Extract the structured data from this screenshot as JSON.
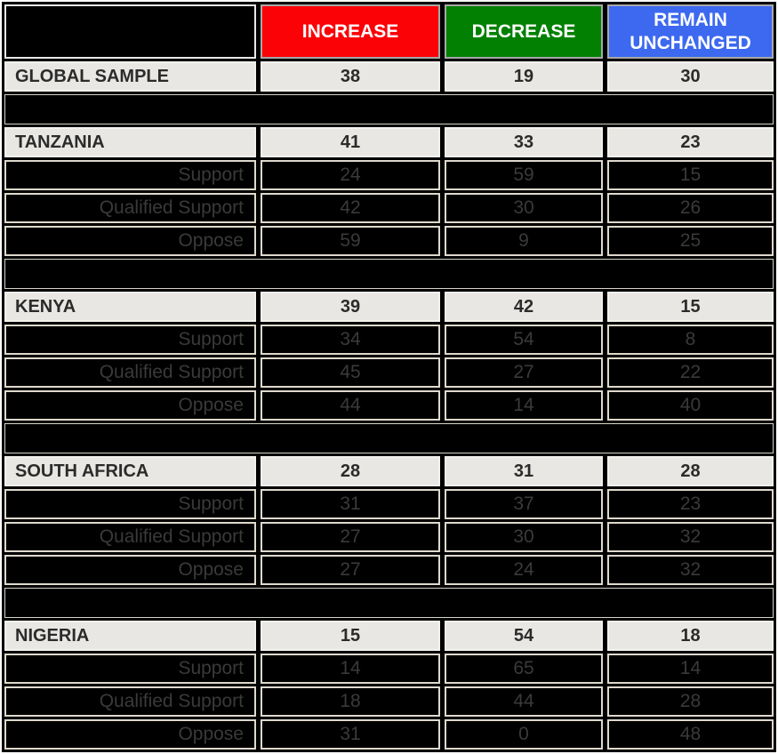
{
  "colors": {
    "increase_header_bg": "#fb0207",
    "decrease_header_bg": "#018001",
    "remain_unchanged_header_bg": "#3c69f0",
    "header_text": "#ffffff",
    "group_row_bg": "#e8e7e3",
    "group_row_text": "#2b2b2b",
    "sub_row_bg": "#000000",
    "sub_row_text": "#3a3a3a",
    "table_bg": "#000000",
    "sub_cell_border": "#ded9cd"
  },
  "chart_data": {
    "type": "table",
    "columns": [
      "INCREASE",
      "DECREASE",
      "REMAIN UNCHANGED"
    ],
    "rows": [
      {
        "type": "group",
        "label": "GLOBAL SAMPLE",
        "values": [
          38,
          19,
          30
        ]
      },
      {
        "type": "sep"
      },
      {
        "type": "group",
        "label": "TANZANIA",
        "values": [
          41,
          33,
          23
        ]
      },
      {
        "type": "sub",
        "label": "Support",
        "values": [
          24,
          59,
          15
        ]
      },
      {
        "type": "sub",
        "label": "Qualified Support",
        "values": [
          42,
          30,
          26
        ]
      },
      {
        "type": "sub",
        "label": "Oppose",
        "values": [
          59,
          9,
          25
        ]
      },
      {
        "type": "sep"
      },
      {
        "type": "group",
        "label": "KENYA",
        "values": [
          39,
          42,
          15
        ]
      },
      {
        "type": "sub",
        "label": "Support",
        "values": [
          34,
          54,
          8
        ]
      },
      {
        "type": "sub",
        "label": "Qualified Support",
        "values": [
          45,
          27,
          22
        ]
      },
      {
        "type": "sub",
        "label": "Oppose",
        "values": [
          44,
          14,
          40
        ]
      },
      {
        "type": "sep"
      },
      {
        "type": "group",
        "label": "SOUTH AFRICA",
        "values": [
          28,
          31,
          28
        ]
      },
      {
        "type": "sub",
        "label": "Support",
        "values": [
          31,
          37,
          23
        ]
      },
      {
        "type": "sub",
        "label": "Qualified Support",
        "values": [
          27,
          30,
          32
        ]
      },
      {
        "type": "sub",
        "label": "Oppose",
        "values": [
          27,
          24,
          32
        ]
      },
      {
        "type": "sep"
      },
      {
        "type": "group",
        "label": "NIGERIA",
        "values": [
          15,
          54,
          18
        ]
      },
      {
        "type": "sub",
        "label": "Support",
        "values": [
          14,
          65,
          14
        ]
      },
      {
        "type": "sub",
        "label": "Qualified Support",
        "values": [
          18,
          44,
          28
        ]
      },
      {
        "type": "sub",
        "label": "Oppose",
        "values": [
          31,
          0,
          48
        ]
      }
    ]
  }
}
